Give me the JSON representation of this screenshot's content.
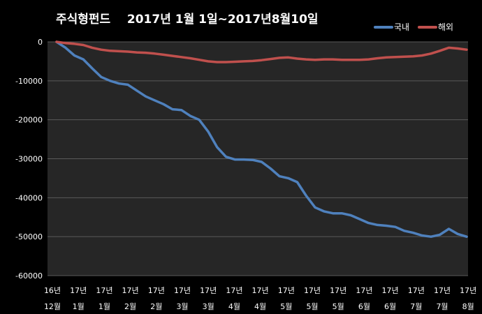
{
  "chart_data": {
    "type": "line",
    "title": "주식형펀드    2017년 1월 1일~2017년8월10일",
    "xlabel": "",
    "ylabel": "",
    "ylim": [
      -60000,
      0
    ],
    "y_ticks": [
      0,
      -10000,
      -20000,
      -30000,
      -40000,
      -50000,
      -60000
    ],
    "x_tick_labels": [
      [
        "16년",
        "12월"
      ],
      [
        "17년",
        "1월"
      ],
      [
        "17년",
        "1월"
      ],
      [
        "17년",
        "2월"
      ],
      [
        "17년",
        "2월"
      ],
      [
        "17년",
        "3월"
      ],
      [
        "17년",
        "3월"
      ],
      [
        "17년",
        "4월"
      ],
      [
        "17년",
        "4월"
      ],
      [
        "17년",
        "5월"
      ],
      [
        "17년",
        "5월"
      ],
      [
        "17년",
        "5월"
      ],
      [
        "17년",
        "6월"
      ],
      [
        "17년",
        "6월"
      ],
      [
        "17년",
        "7월"
      ],
      [
        "17년",
        "7월"
      ],
      [
        "17년",
        "8월"
      ]
    ],
    "legend_position": "top-right",
    "grid": "horizontal",
    "series": [
      {
        "name": "국내",
        "color": "#4f81bd",
        "values": [
          0,
          -1500,
          -3500,
          -4500,
          -6800,
          -9000,
          -10000,
          -10700,
          -11000,
          -12500,
          -14000,
          -15000,
          -16000,
          -17300,
          -17500,
          -19000,
          -20000,
          -23000,
          -27000,
          -29500,
          -30200,
          -30200,
          -30300,
          -30800,
          -32500,
          -34500,
          -35000,
          -36000,
          -39500,
          -42500,
          -43500,
          -44000,
          -44000,
          -44500,
          -45500,
          -46500,
          -47000,
          -47200,
          -47500,
          -48500,
          -49000,
          -49700,
          -50000,
          -49500,
          -48000,
          -49300,
          -50000
        ]
      },
      {
        "name": "해외",
        "color": "#c0504d",
        "values": [
          0,
          -300,
          -500,
          -800,
          -1500,
          -2000,
          -2300,
          -2400,
          -2500,
          -2700,
          -2800,
          -3000,
          -3300,
          -3600,
          -3900,
          -4200,
          -4600,
          -5000,
          -5200,
          -5200,
          -5100,
          -5000,
          -4900,
          -4700,
          -4400,
          -4100,
          -4000,
          -4300,
          -4500,
          -4600,
          -4500,
          -4500,
          -4600,
          -4600,
          -4600,
          -4500,
          -4200,
          -4000,
          -3900,
          -3800,
          -3700,
          -3500,
          -3000,
          -2300,
          -1500,
          -1700,
          -2000
        ]
      }
    ]
  }
}
